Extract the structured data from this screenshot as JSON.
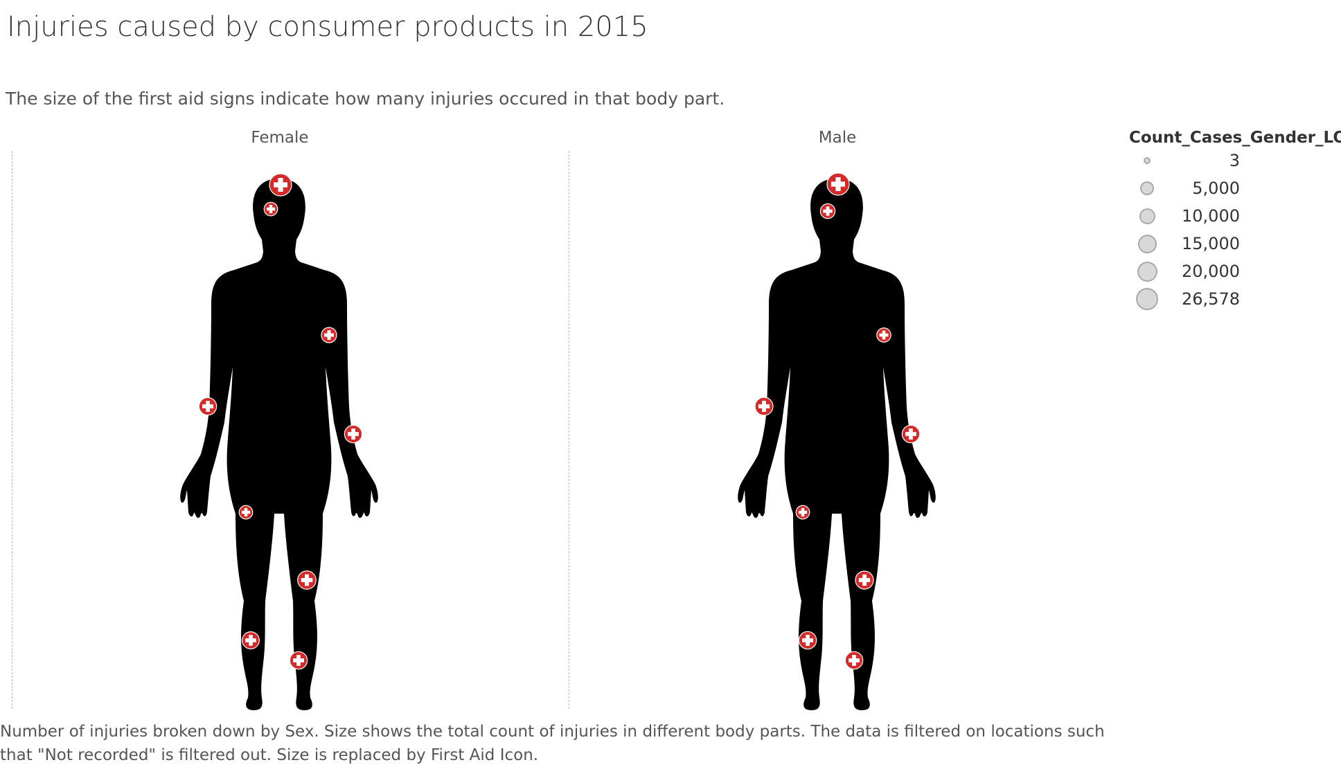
{
  "title": "Injuries caused by consumer products in 2015",
  "subtitle": "The size of the first aid signs indicate how many injuries occured in that body part.",
  "footer": {
    "line1": "Number of injuries broken down by Sex.  Size shows the total count of injuries in different body parts. The data is filtered on locations such",
    "line2": "that \"Not recorded\" is filtered out. Size is replaced by First Aid Icon."
  },
  "colors": {
    "silhouette": "#000000",
    "marker": "#d42a2a",
    "marker_cross": "#ffffff",
    "legend_fill": "#d8d8d8",
    "legend_stroke": "#a9a9a9"
  },
  "marker_icon": "first-aid-icon",
  "chart_data": {
    "type": "scatter",
    "measure": "Count_Cases_Gender_LOD",
    "panels": [
      "Female",
      "Male"
    ],
    "legend": {
      "title": "Count_Cases_Gender_LOD",
      "placement": "right",
      "values": [
        3,
        5000,
        10000,
        15000,
        20000,
        26578
      ],
      "labels": [
        "3",
        "5,000",
        "10,000",
        "15,000",
        "20,000",
        "26,578"
      ]
    },
    "size_range": [
      3,
      26578
    ],
    "series": [
      {
        "name": "Female",
        "points": [
          {
            "part": "head",
            "value": 26578
          },
          {
            "part": "face",
            "value": 5000
          },
          {
            "part": "upper-arm",
            "value": 8000
          },
          {
            "part": "lower-arm",
            "value": 13000
          },
          {
            "part": "hand",
            "value": 13000
          },
          {
            "part": "upper-leg",
            "value": 5000
          },
          {
            "part": "knee",
            "value": 15000
          },
          {
            "part": "lower-leg",
            "value": 12000
          },
          {
            "part": "foot",
            "value": 13000
          }
        ]
      },
      {
        "name": "Male",
        "points": [
          {
            "part": "head",
            "value": 26578
          },
          {
            "part": "face",
            "value": 7000
          },
          {
            "part": "upper-arm",
            "value": 6000
          },
          {
            "part": "lower-arm",
            "value": 14000
          },
          {
            "part": "hand",
            "value": 13000
          },
          {
            "part": "upper-leg",
            "value": 5000
          },
          {
            "part": "knee",
            "value": 14000
          },
          {
            "part": "lower-leg",
            "value": 13000
          },
          {
            "part": "foot",
            "value": 13000
          }
        ]
      }
    ]
  }
}
